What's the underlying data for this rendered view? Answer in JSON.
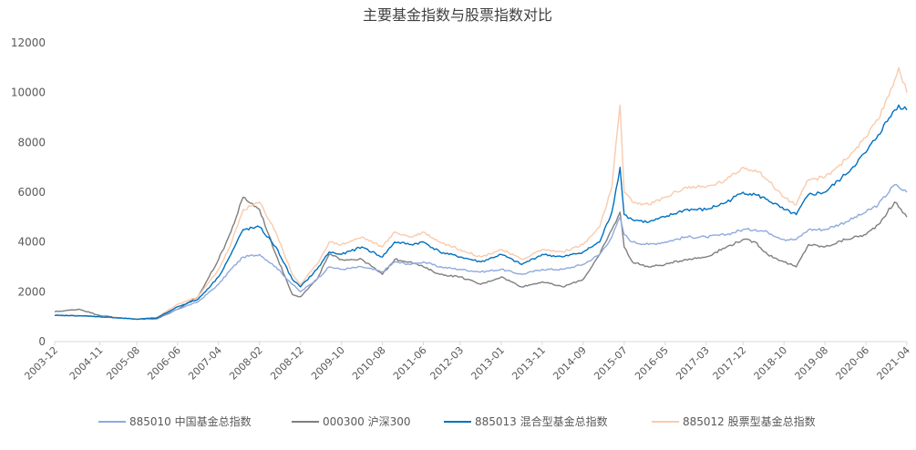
{
  "chart_data": {
    "type": "line",
    "title": "主要基金指数与股票指数对比",
    "xlabel": "",
    "ylabel": "",
    "ylim": [
      0,
      12000
    ],
    "yticks": [
      0,
      2000,
      4000,
      6000,
      8000,
      10000,
      12000
    ],
    "ytick_labels": [
      "0",
      "2000",
      "4000",
      "6000",
      "8000",
      "10000",
      "12000"
    ],
    "x_range": [
      "2003-12",
      "2021-04"
    ],
    "xtick_labels": [
      "2003-12",
      "2004-11",
      "2005-08",
      "2006-06",
      "2007-04",
      "2008-02",
      "2008-12",
      "2009-10",
      "2010-08",
      "2011-06",
      "2012-03",
      "2013-01",
      "2013-11",
      "2014-09",
      "2015-07",
      "2016-05",
      "2017-03",
      "2017-12",
      "2018-10",
      "2019-08",
      "2020-06",
      "2021-04"
    ],
    "grid": false,
    "legend_position": "bottom",
    "x": [
      "2003-12",
      "2004-06",
      "2004-11",
      "2005-04",
      "2005-08",
      "2006-01",
      "2006-06",
      "2006-11",
      "2007-04",
      "2007-07",
      "2007-10",
      "2008-02",
      "2008-06",
      "2008-10",
      "2008-12",
      "2009-04",
      "2009-07",
      "2009-10",
      "2010-03",
      "2010-08",
      "2010-11",
      "2011-03",
      "2011-06",
      "2011-10",
      "2012-03",
      "2012-08",
      "2013-01",
      "2013-06",
      "2013-11",
      "2014-04",
      "2014-09",
      "2015-01",
      "2015-04",
      "2015-06",
      "2015-07",
      "2015-09",
      "2016-01",
      "2016-05",
      "2016-10",
      "2017-03",
      "2017-08",
      "2017-12",
      "2018-03",
      "2018-06",
      "2018-10",
      "2019-01",
      "2019-04",
      "2019-08",
      "2020-01",
      "2020-06",
      "2020-09",
      "2021-01",
      "2021-02",
      "2021-04"
    ],
    "series": [
      {
        "name": "885010 中国基金总指数",
        "color": "#8faadc",
        "values": [
          1050,
          1040,
          1000,
          950,
          900,
          960,
          1300,
          1600,
          2300,
          2900,
          3400,
          3500,
          3000,
          2300,
          2000,
          2500,
          3000,
          2900,
          3000,
          2800,
          3200,
          3100,
          3200,
          3000,
          2900,
          2800,
          2900,
          2700,
          2900,
          2900,
          3100,
          3500,
          4200,
          5000,
          4300,
          4000,
          3900,
          4000,
          4200,
          4200,
          4300,
          4500,
          4500,
          4400,
          4100,
          4100,
          4500,
          4500,
          4800,
          5200,
          5500,
          6300,
          6200,
          6000
        ]
      },
      {
        "name": "000300 沪深300",
        "color": "#7f7f7f",
        "values": [
          1200,
          1300,
          1050,
          950,
          900,
          920,
          1300,
          1800,
          3300,
          4400,
          5800,
          5300,
          3500,
          1900,
          1800,
          2500,
          3500,
          3300,
          3300,
          2700,
          3300,
          3200,
          3000,
          2700,
          2600,
          2300,
          2600,
          2200,
          2400,
          2200,
          2500,
          3500,
          4500,
          5200,
          3800,
          3200,
          3000,
          3100,
          3300,
          3400,
          3800,
          4100,
          4000,
          3500,
          3200,
          3000,
          3900,
          3800,
          4100,
          4300,
          4700,
          5600,
          5400,
          5000
        ]
      },
      {
        "name": "885013 混合型基金总指数",
        "color": "#0070c0",
        "values": [
          1050,
          1040,
          1000,
          950,
          900,
          950,
          1400,
          1700,
          2600,
          3500,
          4500,
          4600,
          3800,
          2500,
          2200,
          2900,
          3600,
          3500,
          3800,
          3400,
          4000,
          3900,
          4000,
          3600,
          3400,
          3200,
          3500,
          3100,
          3500,
          3400,
          3600,
          4000,
          5200,
          7000,
          5100,
          4900,
          4800,
          5000,
          5300,
          5300,
          5600,
          6000,
          5900,
          5700,
          5300,
          5100,
          5900,
          6000,
          6700,
          7600,
          8300,
          9300,
          9500,
          9300
        ]
      },
      {
        "name": "885012 股票型基金总指数",
        "color": "#f8cbad",
        "values": [
          1050,
          1040,
          1000,
          950,
          900,
          970,
          1500,
          1800,
          2900,
          3900,
          5300,
          5600,
          4400,
          2700,
          2300,
          3100,
          4000,
          3900,
          4200,
          3800,
          4400,
          4200,
          4400,
          4000,
          3700,
          3400,
          3700,
          3300,
          3700,
          3600,
          3900,
          4600,
          6200,
          9500,
          6000,
          5600,
          5500,
          5800,
          6200,
          6200,
          6500,
          7000,
          6900,
          6500,
          5800,
          5500,
          6500,
          6600,
          7300,
          8200,
          8900,
          10500,
          11000,
          10000
        ]
      }
    ]
  }
}
